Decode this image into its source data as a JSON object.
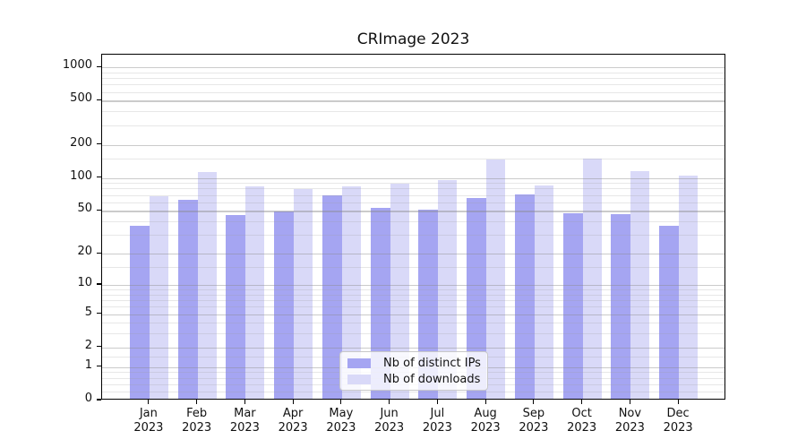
{
  "chart_data": {
    "type": "bar",
    "title": "CRImage 2023",
    "categories": [
      "Jan 2023",
      "Feb 2023",
      "Mar 2023",
      "Apr 2023",
      "May 2023",
      "Jun 2023",
      "Jul 2023",
      "Aug 2023",
      "Sep 2023",
      "Oct 2023",
      "Nov 2023",
      "Dec 2023"
    ],
    "series": [
      {
        "name": "Nb of distinct IPs",
        "color": "#a5a5f2",
        "values": [
          35,
          61,
          44,
          48,
          67,
          51,
          49,
          63,
          68,
          46,
          45,
          35
        ]
      },
      {
        "name": "Nb of downloads",
        "color": "#d9d9f8",
        "values": [
          66,
          110,
          80,
          76,
          81,
          86,
          92,
          141,
          83,
          143,
          112,
          101
        ]
      }
    ],
    "y_axis": {
      "scale": "log10(value+1)",
      "ticks": [
        0,
        1,
        2,
        5,
        10,
        20,
        50,
        100,
        200,
        500,
        1000
      ],
      "minor_gridlines": [
        0.2,
        0.4,
        0.6,
        0.8,
        1.5,
        3,
        4,
        6,
        7,
        8,
        9,
        15,
        30,
        40,
        60,
        70,
        80,
        90,
        150,
        300,
        400,
        600,
        700,
        800,
        900
      ],
      "max": 1300
    },
    "grid": true,
    "legend_position": "lower center"
  }
}
